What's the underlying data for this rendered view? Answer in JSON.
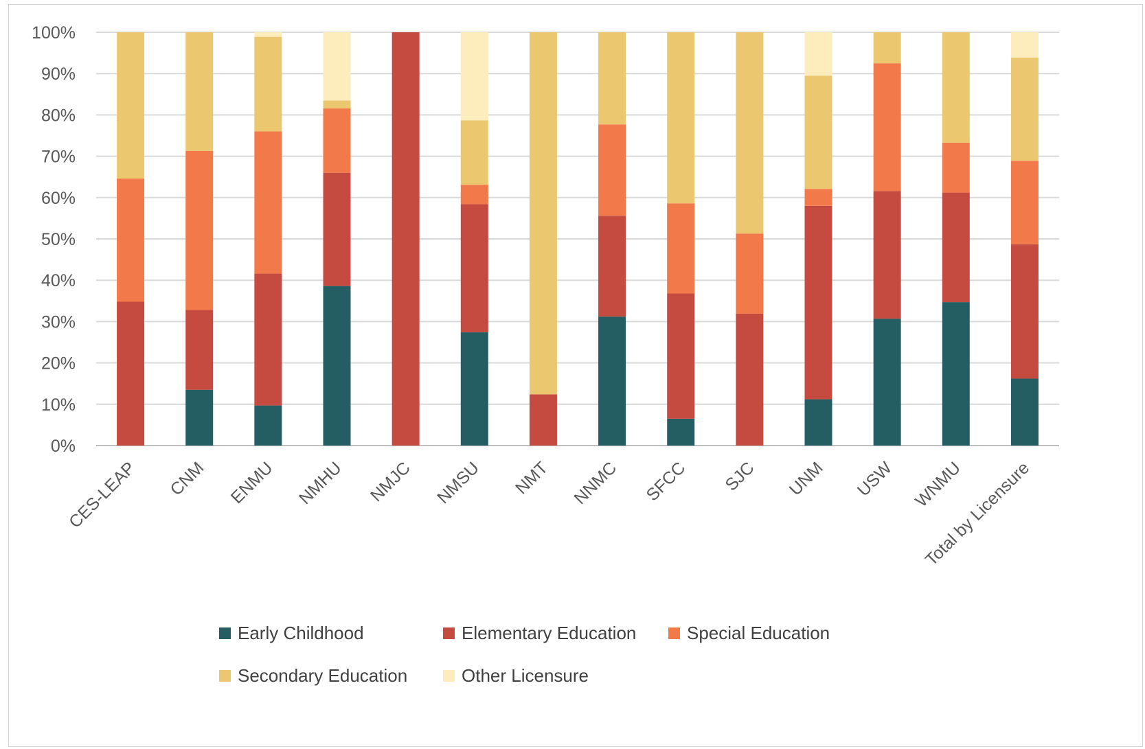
{
  "chart_data": {
    "type": "bar",
    "stacked": "percent",
    "categories": [
      "CES-LEAP",
      "CNM",
      "ENMU",
      "NMHU",
      "NMJC",
      "NMSU",
      "NMT",
      "NNMC",
      "SFCC",
      "SJC",
      "UNM",
      "USW",
      "WNMU",
      "Total by Licensure"
    ],
    "series": [
      {
        "name": "Early Childhood",
        "color": "#245E63",
        "values": [
          0,
          13.5,
          9.7,
          38.6,
          0,
          27.4,
          0,
          31.2,
          6.5,
          0,
          11.2,
          30.7,
          34.7,
          16.2
        ]
      },
      {
        "name": "Elementary Education",
        "color": "#C54A40",
        "values": [
          34.8,
          19.3,
          31.9,
          27.4,
          100,
          31.0,
          12.4,
          24.4,
          30.3,
          31.9,
          46.8,
          30.9,
          26.5,
          32.5
        ]
      },
      {
        "name": "Special Education",
        "color": "#F1794A",
        "values": [
          29.8,
          38.5,
          34.4,
          15.6,
          0,
          4.7,
          0,
          22.1,
          21.8,
          19.4,
          4.1,
          30.9,
          12.1,
          20.2
        ]
      },
      {
        "name": "Secondary Education",
        "color": "#EBC770",
        "values": [
          35.4,
          28.7,
          22.9,
          1.9,
          0,
          15.6,
          87.6,
          22.3,
          41.4,
          48.7,
          27.4,
          7.5,
          26.7,
          25.0
        ]
      },
      {
        "name": "Other Licensure",
        "color": "#FDEDBD",
        "values": [
          0,
          0,
          1.1,
          16.5,
          0,
          21.3,
          0,
          0,
          0,
          0,
          10.5,
          0,
          0,
          6.1
        ]
      }
    ],
    "yticks": [
      "0%",
      "10%",
      "20%",
      "30%",
      "40%",
      "50%",
      "60%",
      "70%",
      "80%",
      "90%",
      "100%"
    ],
    "ylim": [
      0,
      100
    ],
    "grid": true,
    "legend_position": "bottom"
  }
}
